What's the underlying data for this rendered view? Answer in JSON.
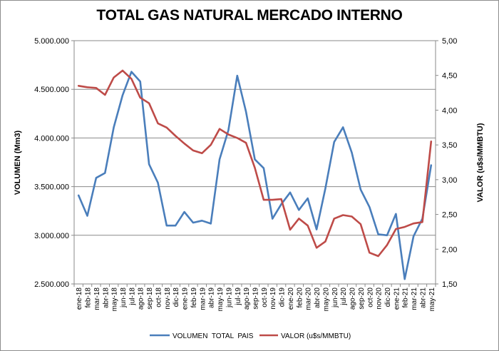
{
  "chart_data": {
    "type": "line",
    "title": "TOTAL GAS NATURAL MERCADO INTERNO",
    "ylabel_left": "VOLUMEN (Mm3)",
    "ylabel_right": "VALOR (u$s/MMBTU)",
    "ylim_left": [
      2500000,
      5000000
    ],
    "ylim_right": [
      1.5,
      5.0
    ],
    "yticks_left": [
      "2.500.000",
      "3.000.000",
      "3.500.000",
      "4.000.000",
      "4.500.000",
      "5.000.000"
    ],
    "yticks_right": [
      "1,50",
      "2,00",
      "2,50",
      "3,00",
      "3,50",
      "4,00",
      "4,50",
      "5,00"
    ],
    "grid": true,
    "legend_position": "bottom",
    "categories": [
      "ene-18",
      "feb-18",
      "mar-18",
      "abr-18",
      "may-18",
      "jun-18",
      "jul-18",
      "ago-18",
      "sep-18",
      "oct-18",
      "nov-18",
      "dic-18",
      "ene-19",
      "feb-19",
      "mar-19",
      "abr-19",
      "may-19",
      "jun-19",
      "jul-19",
      "ago-19",
      "sep-19",
      "oct-19",
      "nov-19",
      "dic-19",
      "ene-20",
      "feb-20",
      "mar-20",
      "abr-20",
      "may-20",
      "jun-20",
      "jul-20",
      "ago-20",
      "sep-20",
      "oct-20",
      "nov-20",
      "dic-20",
      "ene-21",
      "feb-21",
      "mar-21",
      "abr-21",
      "may-21"
    ],
    "series": [
      {
        "name": "VOLUMEN  TOTAL  PAIS",
        "axis": "left",
        "color": "#4a7ebb",
        "values": [
          3410000,
          3200000,
          3590000,
          3640000,
          4110000,
          4440000,
          4680000,
          4580000,
          3730000,
          3540000,
          3100000,
          3100000,
          3240000,
          3130000,
          3150000,
          3120000,
          3780000,
          4080000,
          4640000,
          4270000,
          3780000,
          3690000,
          3170000,
          3320000,
          3440000,
          3260000,
          3380000,
          3060000,
          3480000,
          3960000,
          4110000,
          3850000,
          3470000,
          3290000,
          3010000,
          3000000,
          3220000,
          2550000,
          2990000,
          3170000,
          3720000
        ]
      },
      {
        "name": "VALOR (u$s/MMBTU)",
        "axis": "right",
        "color": "#be4b48",
        "values": [
          4.35,
          4.33,
          4.32,
          4.22,
          4.47,
          4.57,
          4.45,
          4.18,
          4.1,
          3.81,
          3.75,
          3.63,
          3.52,
          3.42,
          3.38,
          3.5,
          3.73,
          3.65,
          3.6,
          3.53,
          3.17,
          2.71,
          2.71,
          2.72,
          2.28,
          2.44,
          2.34,
          2.02,
          2.11,
          2.44,
          2.49,
          2.47,
          2.36,
          1.95,
          1.9,
          2.06,
          2.29,
          2.32,
          2.37,
          2.39,
          3.55
        ]
      }
    ]
  }
}
